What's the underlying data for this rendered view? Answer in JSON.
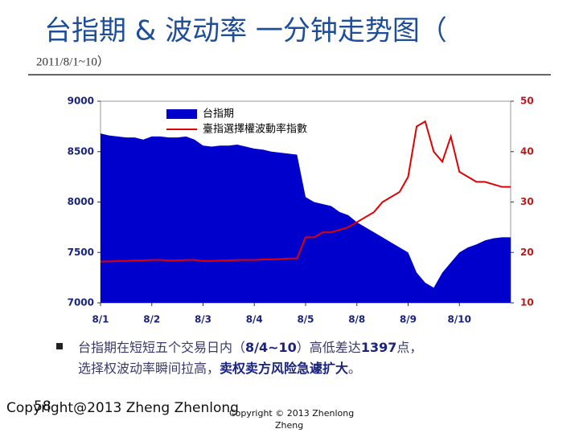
{
  "title": "台指期 & 波动率 一分钟走势图（",
  "subtitle": "2011/8/1~10）",
  "bullet": {
    "runs": [
      {
        "text": "台指期在短短五个交易日内（",
        "bold": false
      },
      {
        "text": "8/4~10",
        "bold": true
      },
      {
        "text": "）高低差达",
        "bold": false
      },
      {
        "text": "1397",
        "bold": true
      },
      {
        "text": "点，",
        "bold": false
      }
    ],
    "runs2": [
      {
        "text": "选择权波动率瞬间拉高，",
        "bold": false
      },
      {
        "text": "卖权卖方风险急遽扩大",
        "bold": true
      },
      {
        "text": "。",
        "bold": false
      }
    ]
  },
  "footer": {
    "copyright": "Copyright@2013 Zheng Zhenlong",
    "slide_number": "58",
    "small_line1": "Copyright © 2013 Zhenlong",
    "small_line2": "Zheng"
  },
  "chart_data": {
    "type": "area-line",
    "categories": [
      "8/1",
      null,
      null,
      null,
      null,
      null,
      "8/2",
      null,
      null,
      null,
      null,
      null,
      "8/3",
      null,
      null,
      null,
      null,
      null,
      "8/4",
      null,
      null,
      null,
      null,
      null,
      "8/5",
      null,
      null,
      null,
      null,
      null,
      "8/8",
      null,
      null,
      null,
      null,
      null,
      "8/9",
      null,
      null,
      null,
      null,
      null,
      "8/10",
      null,
      null,
      null,
      null,
      null
    ],
    "series": [
      {
        "name": "台指期",
        "color": "#0000cc",
        "kind": "area",
        "values": [
          8680,
          8660,
          8650,
          8640,
          8640,
          8620,
          8650,
          8650,
          8640,
          8640,
          8650,
          8620,
          8560,
          8550,
          8560,
          8560,
          8570,
          8550,
          8530,
          8520,
          8500,
          8490,
          8480,
          8470,
          8050,
          8000,
          7980,
          7960,
          7900,
          7870,
          7800,
          7750,
          7700,
          7650,
          7600,
          7550,
          7500,
          7300,
          7200,
          7150,
          7300,
          7400,
          7500,
          7550,
          7580,
          7620,
          7640,
          7650
        ]
      },
      {
        "name": "臺指選擇權波動率指數",
        "color": "#e00000",
        "kind": "line",
        "axis": "y2",
        "values": [
          18.2,
          18.2,
          18.3,
          18.3,
          18.4,
          18.4,
          18.5,
          18.5,
          18.4,
          18.4,
          18.5,
          18.5,
          18.3,
          18.3,
          18.4,
          18.4,
          18.5,
          18.5,
          18.5,
          18.6,
          18.6,
          18.7,
          18.8,
          18.8,
          23,
          23,
          24,
          24,
          24.5,
          25,
          26,
          27,
          28,
          30,
          31,
          32,
          35,
          45,
          46,
          40,
          38,
          43,
          36,
          35,
          34,
          34,
          33.5,
          33
        ]
      }
    ],
    "ylim": [
      7000,
      9000
    ],
    "yticks": [
      7000,
      7500,
      8000,
      8500,
      9000
    ],
    "y2lim": [
      10,
      50
    ],
    "y2ticks": [
      10,
      20,
      30,
      40,
      50
    ]
  }
}
